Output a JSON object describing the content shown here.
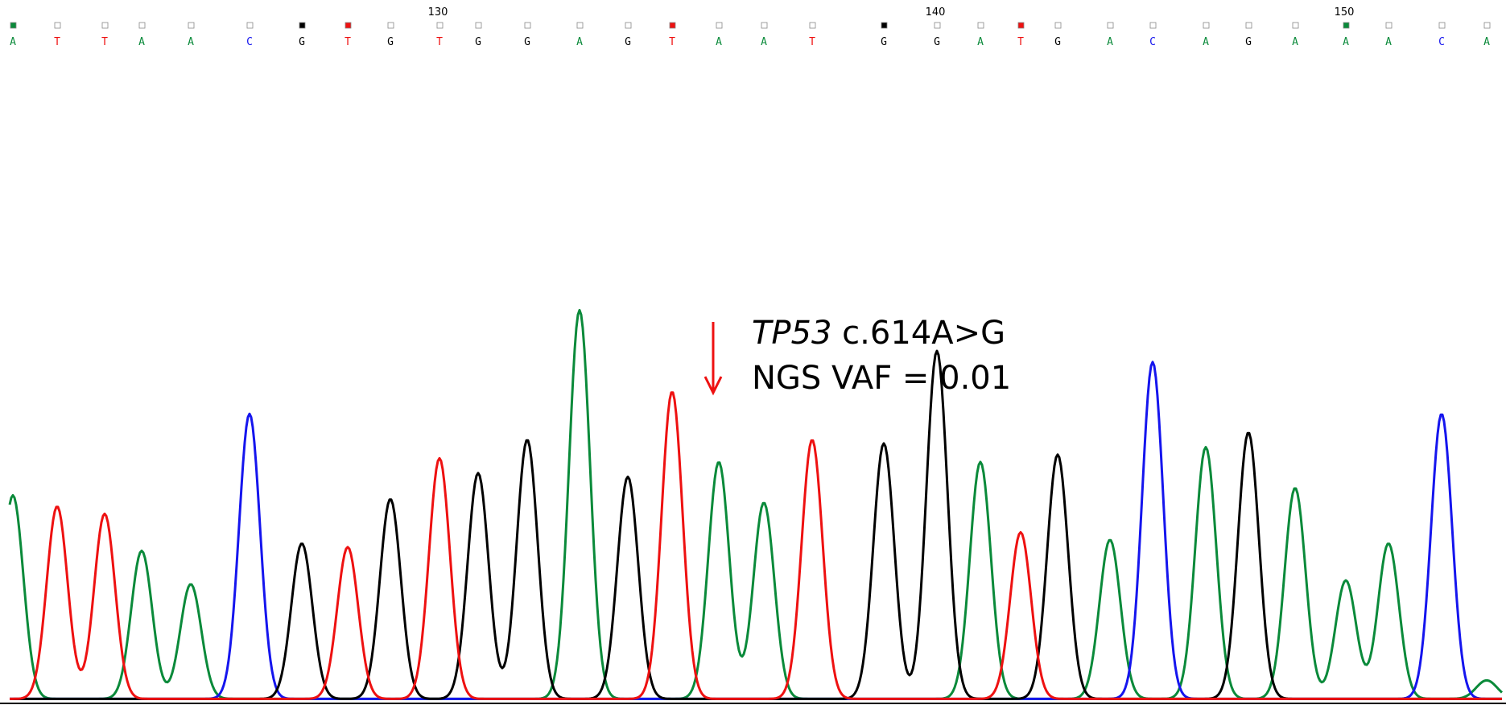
{
  "chart_data": {
    "type": "chromatogram",
    "title": "",
    "position_ticks": [
      "130",
      "140",
      "150"
    ],
    "bases": [
      "A",
      "T",
      "T",
      "A",
      "A",
      "C",
      "G",
      "T",
      "G",
      "T",
      "G",
      "G",
      "A",
      "G",
      "T",
      "A",
      "A",
      "T",
      "G",
      "G",
      "A",
      "T",
      "G",
      "A",
      "C",
      "A",
      "G",
      "A",
      "A",
      "A",
      "C",
      "A"
    ],
    "channel_colors": {
      "A": "#0a8a3a",
      "C": "#1515ee",
      "G": "#000000",
      "T": "#ee1111"
    },
    "annotation": {
      "gene": "TP53",
      "variant": "c.614A>G",
      "vaf_text": "NGS VAF = 0.01",
      "arrow_color": "#ee1111"
    }
  }
}
